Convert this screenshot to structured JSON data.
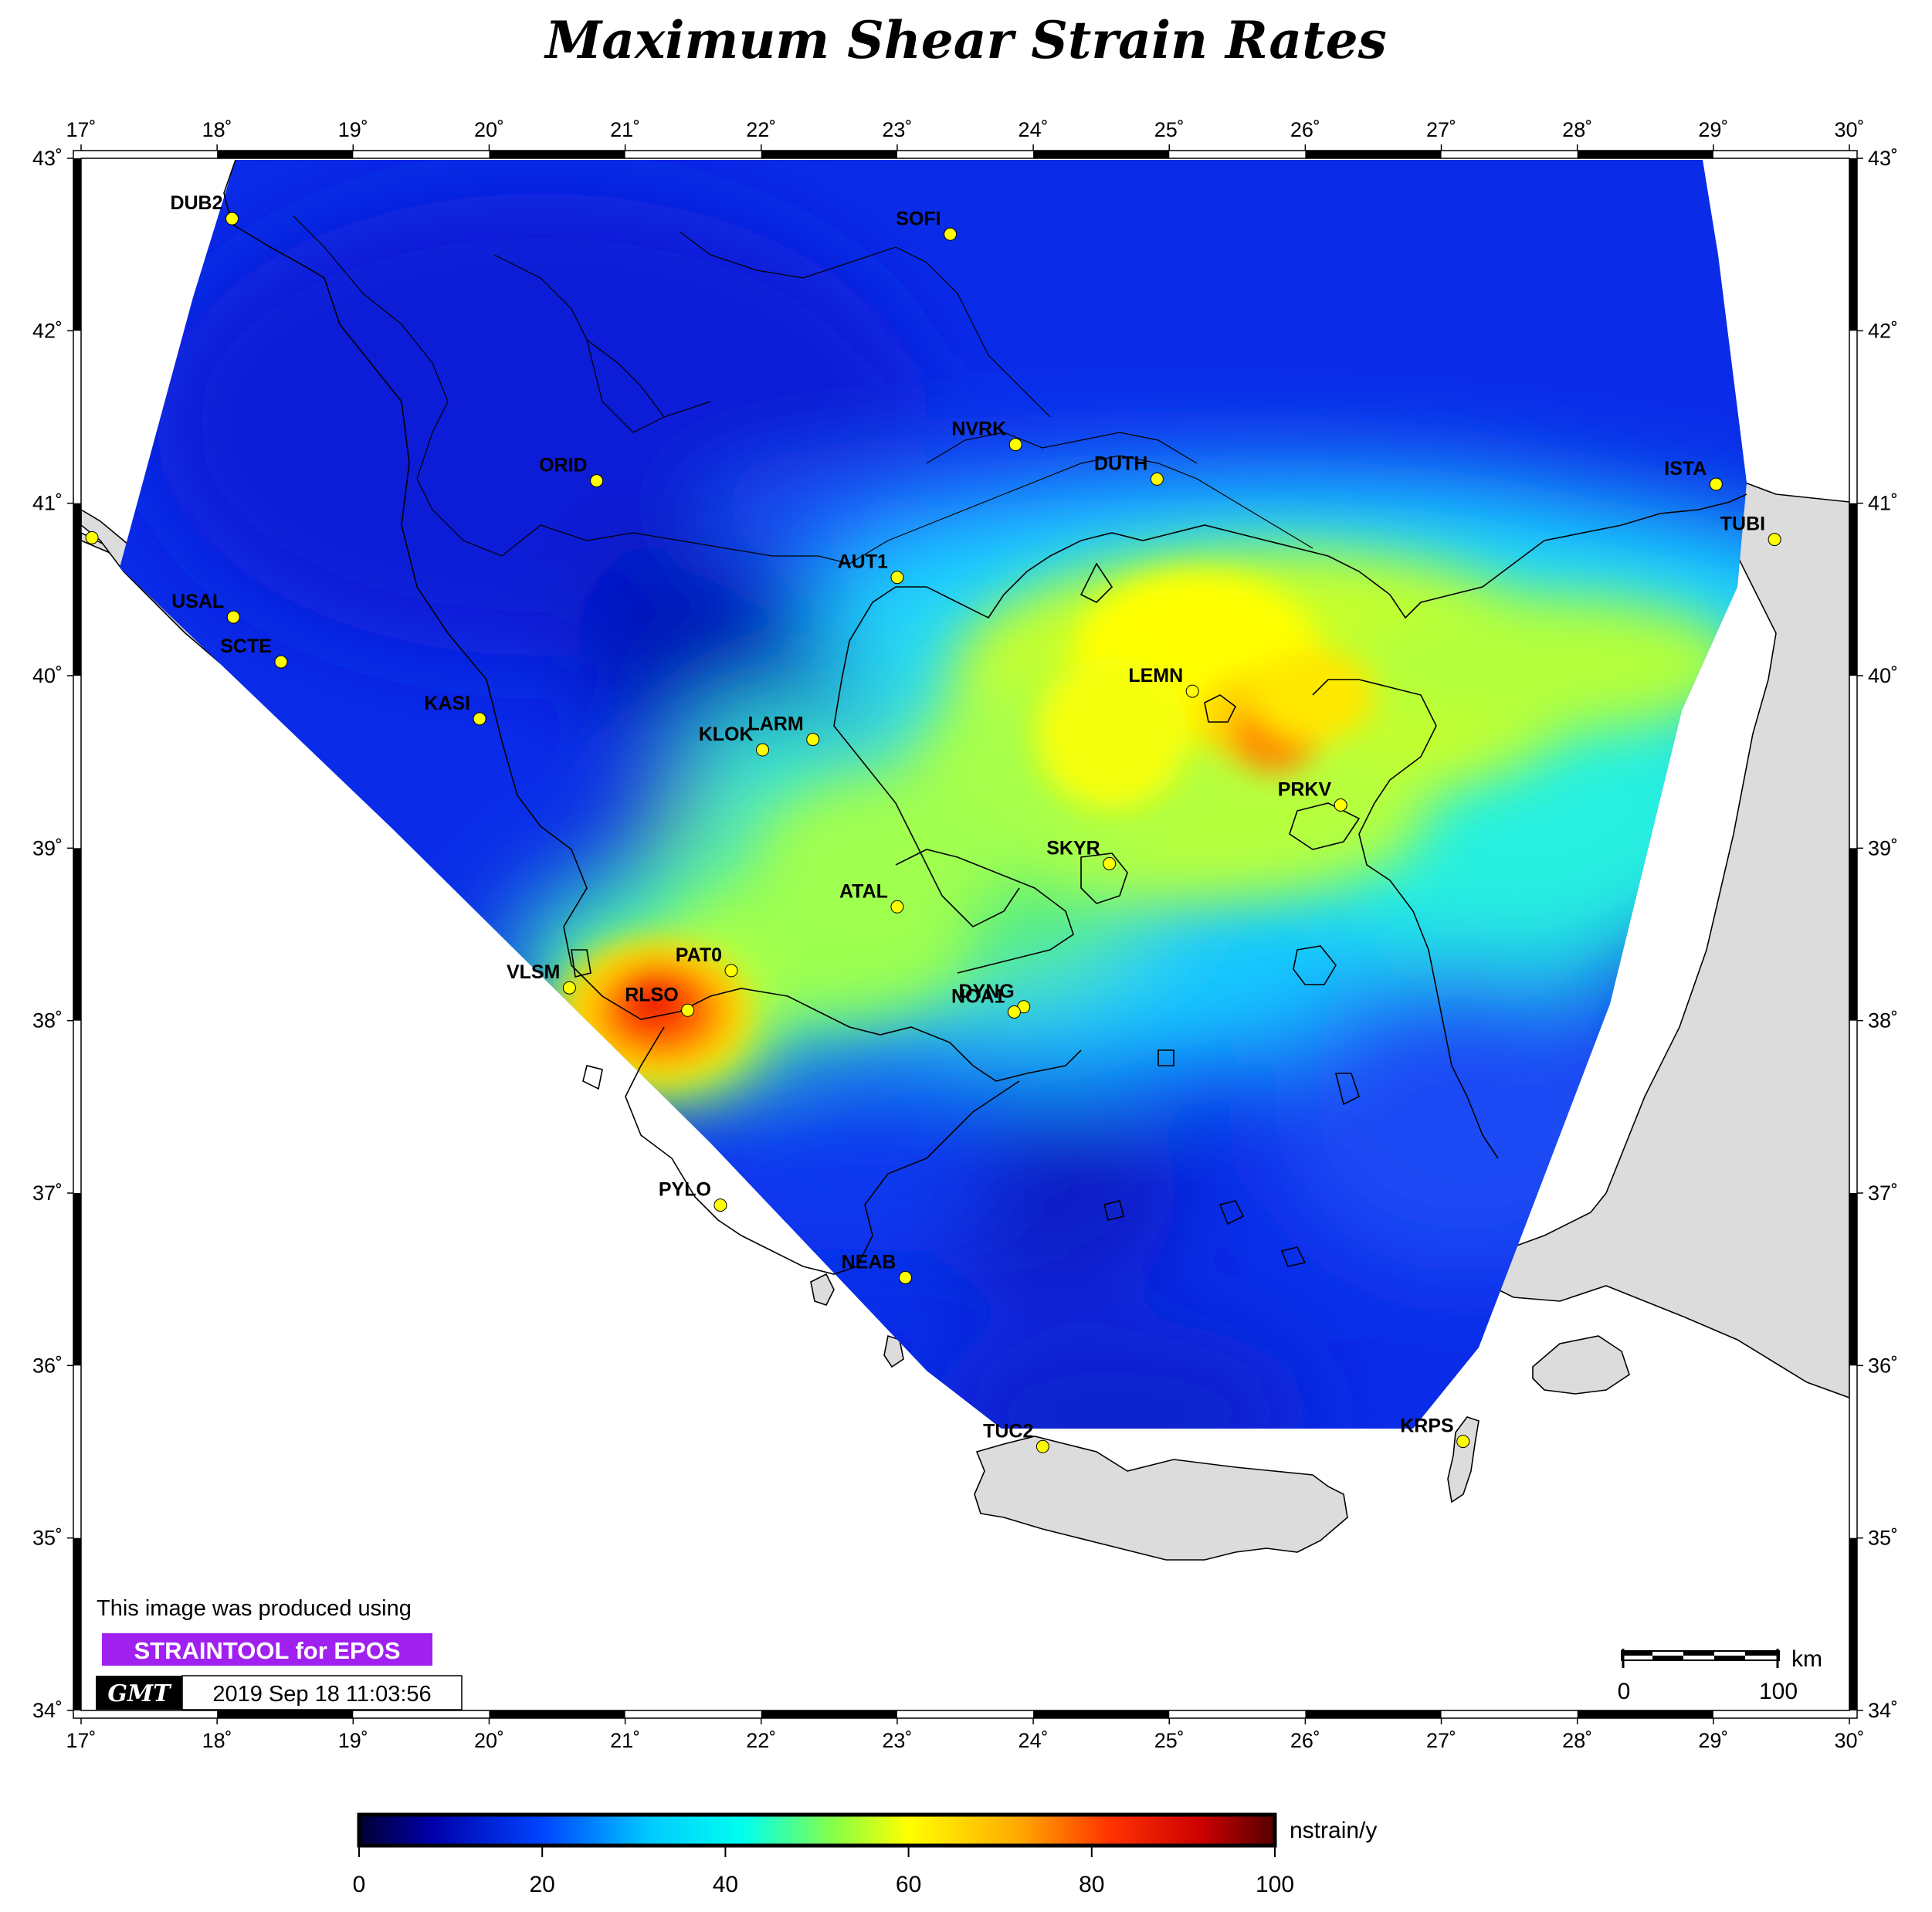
{
  "title": "Maximum Shear Strain Rates",
  "lon_ticks": [
    "17˚",
    "18˚",
    "19˚",
    "20˚",
    "21˚",
    "22˚",
    "23˚",
    "24˚",
    "25˚",
    "26˚",
    "27˚",
    "28˚",
    "29˚",
    "30˚"
  ],
  "lat_ticks": [
    "43˚",
    "42˚",
    "41˚",
    "40˚",
    "39˚",
    "38˚",
    "37˚",
    "36˚",
    "35˚",
    "34˚"
  ],
  "map_extent": {
    "lon": [
      17,
      30
    ],
    "lat": [
      34,
      43
    ]
  },
  "stations": [
    {
      "name": "DUB2",
      "lon": 18.11,
      "lat": 42.65
    },
    {
      "name": "SOFI",
      "lon": 23.39,
      "lat": 42.56
    },
    {
      "name": "NVRK",
      "lon": 23.87,
      "lat": 41.34
    },
    {
      "name": "ORID",
      "lon": 20.79,
      "lat": 41.13
    },
    {
      "name": "DUTH",
      "lon": 24.91,
      "lat": 41.14
    },
    {
      "name": "ISTA",
      "lon": 29.02,
      "lat": 41.11
    },
    {
      "name": "TUBI",
      "lon": 29.45,
      "lat": 40.79
    },
    {
      "name": "AUT1",
      "lon": 23.0,
      "lat": 40.57
    },
    {
      "name": "USAL",
      "lon": 18.12,
      "lat": 40.34
    },
    {
      "name": "SCTE",
      "lon": 18.47,
      "lat": 40.08
    },
    {
      "name": "LEMN",
      "lon": 25.17,
      "lat": 39.91
    },
    {
      "name": "KASI",
      "lon": 19.93,
      "lat": 39.75
    },
    {
      "name": "LARM",
      "lon": 22.38,
      "lat": 39.63
    },
    {
      "name": "KLOK",
      "lon": 22.01,
      "lat": 39.57
    },
    {
      "name": "PRKV",
      "lon": 26.26,
      "lat": 39.25
    },
    {
      "name": "SKYR",
      "lon": 24.56,
      "lat": 38.91
    },
    {
      "name": "ATAL",
      "lon": 23.0,
      "lat": 38.66
    },
    {
      "name": "PAT0",
      "lon": 21.78,
      "lat": 38.29
    },
    {
      "name": "VLSM",
      "lon": 20.59,
      "lat": 38.19
    },
    {
      "name": "RLSO",
      "lon": 21.46,
      "lat": 38.06
    },
    {
      "name": "DYNG",
      "lon": 23.93,
      "lat": 38.08
    },
    {
      "name": "NOA1",
      "lon": 23.86,
      "lat": 38.05
    },
    {
      "name": "PYLO",
      "lon": 21.7,
      "lat": 36.93
    },
    {
      "name": "NEAB",
      "lon": 23.06,
      "lat": 36.51
    },
    {
      "name": "TUC2",
      "lon": 24.07,
      "lat": 35.53
    },
    {
      "name": "KRPS",
      "lon": 27.16,
      "lat": 35.56
    },
    {
      "name": "",
      "lon": 17.08,
      "lat": 40.8
    }
  ],
  "credits": {
    "line1": "This image was produced using",
    "badge": "STRAINTOOL for EPOS",
    "gmt_logo": "GMT",
    "timestamp": "2019 Sep 18 11:03:56"
  },
  "scale_bar": {
    "unit": "km",
    "label_start": "0",
    "label_end": "100"
  },
  "colorbar": {
    "unit": "nstrain/y",
    "range": [
      0,
      100
    ],
    "ticks": [
      "0",
      "20",
      "40",
      "60",
      "80",
      "100"
    ],
    "colors": [
      "#000066",
      "#0000ff",
      "#00ffff",
      "#7fff00",
      "#ffff00",
      "#ff6600",
      "#cc0000",
      "#660000"
    ]
  },
  "field": {
    "quantity": "maximum shear strain rate",
    "hotspots": [
      {
        "lon": 21.25,
        "lat": 38.2,
        "value": 85
      },
      {
        "lon": 25.75,
        "lat": 39.8,
        "value": 78
      },
      {
        "lon": 25.0,
        "lat": 40.3,
        "value": 60
      },
      {
        "lon": 27.5,
        "lat": 40.3,
        "value": 52
      },
      {
        "lon": 22.5,
        "lat": 38.6,
        "value": 48
      },
      {
        "lon": 24.5,
        "lat": 39.2,
        "value": 50
      },
      {
        "lon": 25.5,
        "lat": 38.2,
        "value": 38
      },
      {
        "lon": 24.5,
        "lat": 36.3,
        "value": 12
      },
      {
        "lon": 23.6,
        "lat": 37.2,
        "value": 14
      },
      {
        "lon": 22.0,
        "lat": 40.3,
        "value": 10
      }
    ]
  }
}
